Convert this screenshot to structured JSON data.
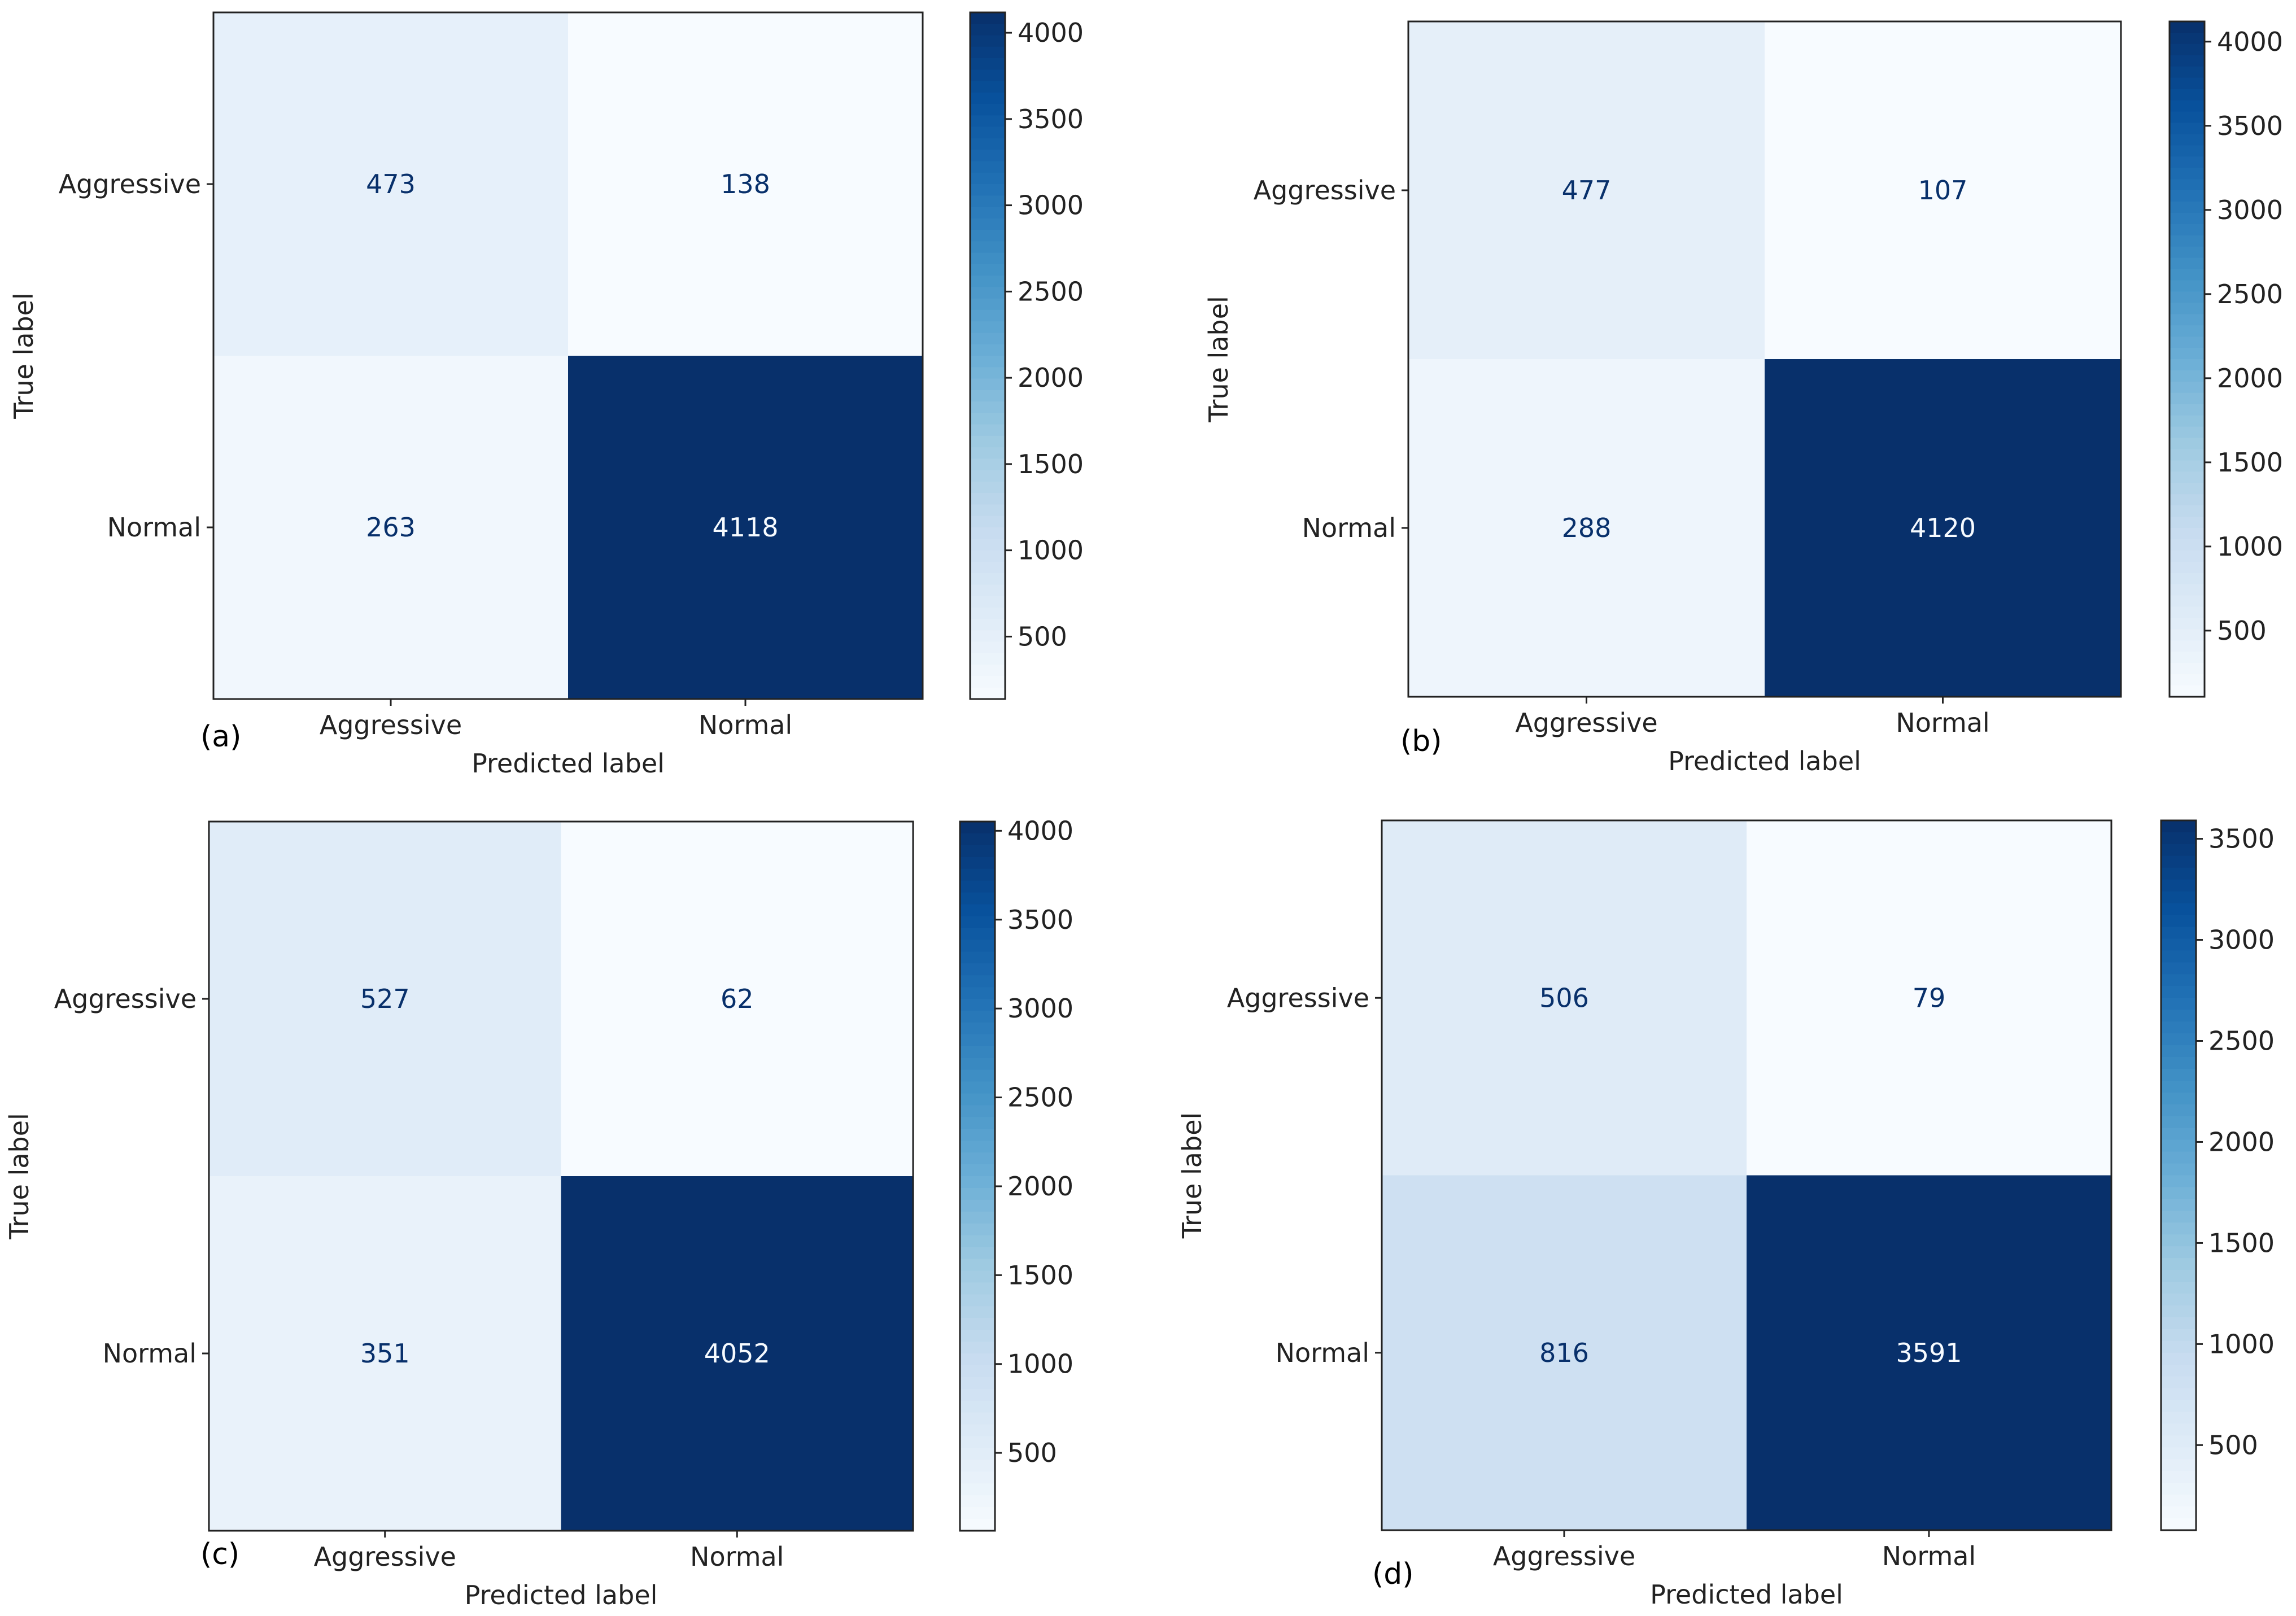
{
  "chart_data": [
    {
      "type": "heatmap",
      "panel_label": "(a)",
      "xlabel": "Predicted label",
      "ylabel": "True label",
      "x_categories": [
        "Aggressive",
        "Normal"
      ],
      "y_categories": [
        "Aggressive",
        "Normal"
      ],
      "values": [
        [
          473,
          138
        ],
        [
          263,
          4118
        ]
      ],
      "colorbar": {
        "min": 138,
        "max": 4118,
        "ticks": [
          500,
          1000,
          1500,
          2000,
          2500,
          3000,
          3500,
          4000
        ]
      },
      "colormap": "Blues"
    },
    {
      "type": "heatmap",
      "panel_label": "(b)",
      "xlabel": "Predicted label",
      "ylabel": "True label",
      "x_categories": [
        "Aggressive",
        "Normal"
      ],
      "y_categories": [
        "Aggressive",
        "Normal"
      ],
      "values": [
        [
          477,
          107
        ],
        [
          288,
          4120
        ]
      ],
      "colorbar": {
        "min": 107,
        "max": 4120,
        "ticks": [
          500,
          1000,
          1500,
          2000,
          2500,
          3000,
          3500,
          4000
        ]
      },
      "colormap": "Blues"
    },
    {
      "type": "heatmap",
      "panel_label": "(c)",
      "xlabel": "Predicted label",
      "ylabel": "True label",
      "x_categories": [
        "Aggressive",
        "Normal"
      ],
      "y_categories": [
        "Aggressive",
        "Normal"
      ],
      "values": [
        [
          527,
          62
        ],
        [
          351,
          4052
        ]
      ],
      "colorbar": {
        "min": 62,
        "max": 4052,
        "ticks": [
          500,
          1000,
          1500,
          2000,
          2500,
          3000,
          3500,
          4000
        ]
      },
      "colormap": "Blues"
    },
    {
      "type": "heatmap",
      "panel_label": "(d)",
      "xlabel": "Predicted label",
      "ylabel": "True label",
      "x_categories": [
        "Aggressive",
        "Normal"
      ],
      "y_categories": [
        "Aggressive",
        "Normal"
      ],
      "values": [
        [
          506,
          79
        ],
        [
          816,
          3591
        ]
      ],
      "colorbar": {
        "min": 79,
        "max": 3591,
        "ticks": [
          500,
          1000,
          1500,
          2000,
          2500,
          3000,
          3500
        ]
      },
      "colormap": "Blues"
    }
  ]
}
